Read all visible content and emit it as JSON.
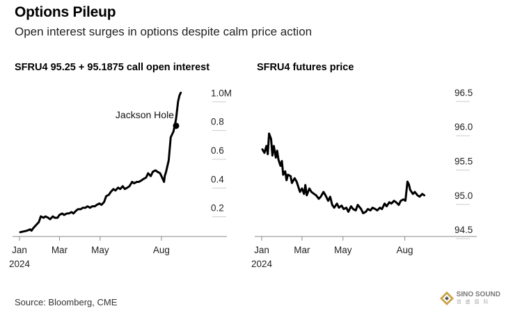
{
  "header": {
    "title": "Options Pileup",
    "subtitle": "Open interest surges in options despite calm price action"
  },
  "source": "Source: Bloomberg, CME",
  "logo": {
    "name": "SINO SOUND",
    "sub": "谊 盛 国 际"
  },
  "colors": {
    "line": "#000000",
    "axis": "#888888",
    "grid": "#cccccc",
    "text": "#222222"
  },
  "chart_data": [
    {
      "type": "line",
      "title": "SFRU4 95.25 + 95.1875 call open interest",
      "y_axis_side": "right",
      "ylim": [
        0.0,
        1.05
      ],
      "yticks": [
        0.2,
        0.4,
        0.6,
        0.8,
        1.0
      ],
      "ytick_labels": [
        "0.2",
        "0.4",
        "0.6",
        "0.8",
        "1.0M"
      ],
      "xlim": [
        "2024-01-01",
        "2024-09-15"
      ],
      "xticks": [
        "2024-01-01",
        "2024-03-01",
        "2024-05-01",
        "2024-08-01"
      ],
      "xtick_labels": [
        "Jan",
        "Mar",
        "May",
        "Aug"
      ],
      "xtick_sublabels": [
        "2024",
        "",
        "",
        ""
      ],
      "annotation": {
        "text": "Jackson Hole",
        "x": "2024-08-23",
        "y": 0.77
      },
      "series": [
        {
          "x": [
            "2024-01-02",
            "2024-01-07",
            "2024-01-12",
            "2024-01-17",
            "2024-01-19",
            "2024-01-22",
            "2024-01-26",
            "2024-01-30",
            "2024-02-02",
            "2024-02-06",
            "2024-02-09",
            "2024-02-13",
            "2024-02-16",
            "2024-02-20",
            "2024-02-23",
            "2024-02-27",
            "2024-03-01",
            "2024-03-05",
            "2024-03-08",
            "2024-03-12",
            "2024-03-15",
            "2024-03-19",
            "2024-03-22",
            "2024-03-26",
            "2024-03-29",
            "2024-04-02",
            "2024-04-05",
            "2024-04-09",
            "2024-04-12",
            "2024-04-16",
            "2024-04-19",
            "2024-04-23",
            "2024-04-26",
            "2024-04-30",
            "2024-05-03",
            "2024-05-07",
            "2024-05-10",
            "2024-05-14",
            "2024-05-17",
            "2024-05-21",
            "2024-05-24",
            "2024-05-28",
            "2024-05-31",
            "2024-06-04",
            "2024-06-07",
            "2024-06-11",
            "2024-06-14",
            "2024-06-18",
            "2024-06-21",
            "2024-06-25",
            "2024-06-28",
            "2024-07-02",
            "2024-07-05",
            "2024-07-09",
            "2024-07-12",
            "2024-07-16",
            "2024-07-19",
            "2024-07-23",
            "2024-07-26",
            "2024-07-30",
            "2024-08-02",
            "2024-08-05",
            "2024-08-06",
            "2024-08-08",
            "2024-08-12",
            "2024-08-15",
            "2024-08-19",
            "2024-08-21",
            "2024-08-23",
            "2024-08-26",
            "2024-08-28",
            "2024-08-30"
          ],
          "y": [
            0.03,
            0.035,
            0.04,
            0.05,
            0.04,
            0.06,
            0.08,
            0.1,
            0.14,
            0.13,
            0.14,
            0.13,
            0.12,
            0.14,
            0.13,
            0.13,
            0.15,
            0.16,
            0.15,
            0.16,
            0.16,
            0.17,
            0.16,
            0.18,
            0.19,
            0.19,
            0.2,
            0.2,
            0.21,
            0.2,
            0.21,
            0.21,
            0.22,
            0.23,
            0.22,
            0.24,
            0.28,
            0.29,
            0.31,
            0.33,
            0.32,
            0.34,
            0.33,
            0.35,
            0.33,
            0.34,
            0.35,
            0.38,
            0.37,
            0.38,
            0.38,
            0.39,
            0.4,
            0.41,
            0.44,
            0.42,
            0.45,
            0.46,
            0.45,
            0.44,
            0.41,
            0.38,
            0.42,
            0.45,
            0.53,
            0.69,
            0.73,
            0.77,
            0.82,
            0.94,
            0.98,
            1.0
          ]
        }
      ]
    },
    {
      "type": "line",
      "title": "SFRU4 futures price",
      "y_axis_side": "right",
      "ylim": [
        94.4,
        96.6
      ],
      "yticks": [
        94.5,
        95.0,
        95.5,
        96.0,
        96.5
      ],
      "ytick_labels": [
        "94.5",
        "95.0",
        "95.5",
        "96.0",
        "96.5"
      ],
      "xlim": [
        "2024-01-01",
        "2024-09-15"
      ],
      "xticks": [
        "2024-01-01",
        "2024-03-01",
        "2024-05-01",
        "2024-08-01"
      ],
      "xtick_labels": [
        "Jan",
        "Mar",
        "May",
        "Aug"
      ],
      "xtick_sublabels": [
        "2024",
        "",
        "",
        ""
      ],
      "series": [
        {
          "x": [
            "2024-01-02",
            "2024-01-05",
            "2024-01-08",
            "2024-01-10",
            "2024-01-12",
            "2024-01-15",
            "2024-01-17",
            "2024-01-19",
            "2024-01-22",
            "2024-01-24",
            "2024-01-26",
            "2024-01-29",
            "2024-01-31",
            "2024-02-02",
            "2024-02-05",
            "2024-02-07",
            "2024-02-09",
            "2024-02-13",
            "2024-02-15",
            "2024-02-19",
            "2024-02-22",
            "2024-02-27",
            "2024-03-01",
            "2024-03-04",
            "2024-03-06",
            "2024-03-08",
            "2024-03-12",
            "2024-03-15",
            "2024-03-19",
            "2024-03-22",
            "2024-03-26",
            "2024-03-29",
            "2024-04-02",
            "2024-04-05",
            "2024-04-09",
            "2024-04-12",
            "2024-04-15",
            "2024-04-18",
            "2024-04-22",
            "2024-04-25",
            "2024-04-29",
            "2024-05-02",
            "2024-05-06",
            "2024-05-09",
            "2024-05-13",
            "2024-05-16",
            "2024-05-20",
            "2024-05-23",
            "2024-05-28",
            "2024-05-31",
            "2024-06-04",
            "2024-06-07",
            "2024-06-11",
            "2024-06-14",
            "2024-06-18",
            "2024-06-21",
            "2024-06-25",
            "2024-06-28",
            "2024-07-02",
            "2024-07-05",
            "2024-07-09",
            "2024-07-12",
            "2024-07-16",
            "2024-07-19",
            "2024-07-23",
            "2024-07-26",
            "2024-07-30",
            "2024-08-02",
            "2024-08-05",
            "2024-08-07",
            "2024-08-09",
            "2024-08-13",
            "2024-08-16",
            "2024-08-20",
            "2024-08-23",
            "2024-08-27",
            "2024-08-30"
          ],
          "y": [
            95.67,
            95.62,
            95.72,
            95.6,
            95.9,
            95.82,
            95.58,
            95.72,
            95.55,
            95.65,
            95.52,
            95.43,
            95.5,
            95.3,
            95.35,
            95.22,
            95.3,
            95.28,
            95.18,
            95.25,
            95.2,
            95.05,
            95.1,
            95.02,
            95.15,
            95.0,
            95.1,
            95.05,
            95.02,
            95.0,
            94.95,
            94.98,
            95.05,
            95.0,
            94.92,
            94.98,
            94.86,
            94.82,
            94.88,
            94.82,
            94.85,
            94.8,
            94.82,
            94.76,
            94.84,
            94.8,
            94.78,
            94.86,
            94.8,
            94.74,
            94.76,
            94.8,
            94.78,
            94.82,
            94.8,
            94.78,
            94.82,
            94.8,
            94.88,
            94.84,
            94.9,
            94.88,
            94.92,
            94.9,
            94.86,
            94.92,
            94.94,
            94.92,
            95.2,
            95.16,
            95.08,
            95.02,
            95.05,
            95.0,
            94.98,
            95.02,
            95.0
          ]
        }
      ]
    }
  ]
}
